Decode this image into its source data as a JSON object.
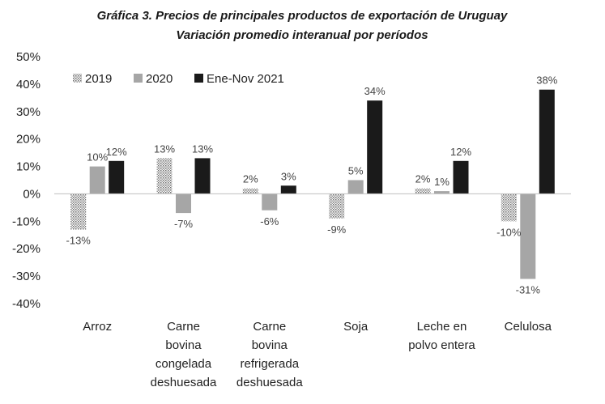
{
  "chart_data": {
    "type": "bar",
    "title_lines": [
      "Gráfica 3. Precios de principales productos de exportación de Uruguay",
      "Variación promedio interanual por períodos"
    ],
    "categories": [
      [
        "Arroz"
      ],
      [
        "Carne",
        "bovina",
        "congelada",
        "deshuesada"
      ],
      [
        "Carne",
        "bovina",
        "refrigerada",
        "deshuesada"
      ],
      [
        "Soja"
      ],
      [
        "Leche en",
        "polvo entera"
      ],
      [
        "Celulosa"
      ]
    ],
    "series": [
      {
        "name": "2019",
        "color": "#d9d9d9",
        "pattern": "dotted",
        "values": [
          -13,
          13,
          2,
          -9,
          2,
          -10
        ],
        "labels": [
          "-13%",
          "13%",
          "2%",
          "-9%",
          "2%",
          "-10%"
        ]
      },
      {
        "name": "2020",
        "color": "#a6a6a6",
        "pattern": "solid",
        "values": [
          10,
          -7,
          -6,
          5,
          1,
          -31
        ],
        "labels": [
          "10%",
          "-7%",
          "-6%",
          "5%",
          "1%",
          "-31%"
        ]
      },
      {
        "name": "Ene-Nov 2021",
        "color": "#1a1a1a",
        "pattern": "solid",
        "values": [
          12,
          13,
          3,
          34,
          12,
          38
        ],
        "labels": [
          "12%",
          "13%",
          "3%",
          "34%",
          "12%",
          "38%"
        ]
      }
    ],
    "ylim": [
      -40,
      50
    ],
    "yticks": [
      50,
      40,
      30,
      20,
      10,
      0,
      -10,
      -20,
      -30,
      -40
    ],
    "ytick_labels": [
      "50%",
      "40%",
      "30%",
      "20%",
      "10%",
      "0%",
      "-10%",
      "-20%",
      "-30%",
      "-40%"
    ],
    "grid": false,
    "legend_position": "top-left"
  }
}
